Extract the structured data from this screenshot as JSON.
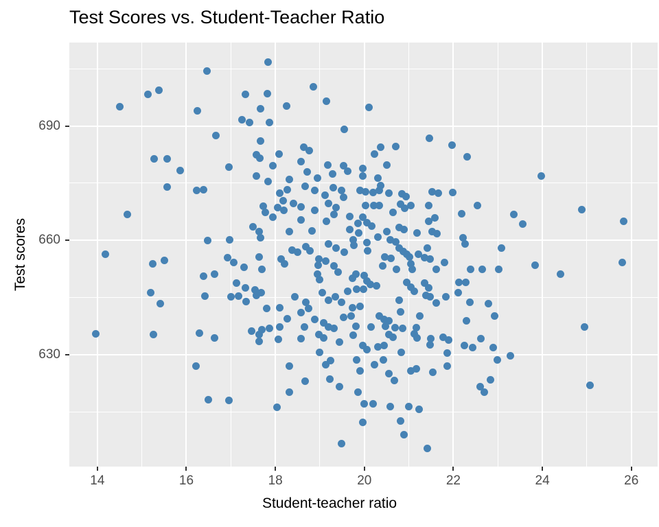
{
  "chart_data": {
    "type": "scatter",
    "title": "Test Scores vs. Student-Teacher Ratio",
    "xlabel": "Student-teacher ratio",
    "ylabel": "Test scores",
    "xlim": [
      13.37,
      26.59
    ],
    "ylim": [
      600.6,
      711.9
    ],
    "x_major_ticks": [
      14,
      16,
      18,
      20,
      22,
      24,
      26
    ],
    "x_minor_ticks": [
      15,
      17,
      19,
      21,
      23,
      25
    ],
    "y_major_ticks": [
      630,
      660,
      690
    ],
    "y_minor_ticks": [
      615,
      645,
      675,
      705
    ],
    "grid": true,
    "legend": "none",
    "point_color": "#4682B4",
    "panel_bg": "#EBEBEB",
    "grid_color": "#FFFFFF",
    "tick_label_color": "#4D4D4D",
    "points": [
      [
        16.46,
        704.4
      ],
      [
        15.13,
        698.3
      ],
      [
        15.38,
        699.3
      ],
      [
        14.51,
        695.1
      ],
      [
        16.25,
        694.0
      ],
      [
        16.66,
        687.5
      ],
      [
        15.27,
        681.3
      ],
      [
        15.57,
        681.3
      ],
      [
        15.86,
        678.3
      ],
      [
        17.84,
        706.8
      ],
      [
        17.33,
        698.3
      ],
      [
        17.82,
        698.4
      ],
      [
        18.85,
        700.2
      ],
      [
        19.14,
        696.5
      ],
      [
        18.26,
        695.3
      ],
      [
        17.67,
        694.5
      ],
      [
        17.25,
        691.6
      ],
      [
        17.42,
        691.0
      ],
      [
        17.86,
        690.9
      ],
      [
        19.55,
        689.2
      ],
      [
        17.67,
        686.1
      ],
      [
        17.58,
        682.5
      ],
      [
        17.65,
        681.6
      ],
      [
        18.09,
        682.7
      ],
      [
        18.64,
        684.5
      ],
      [
        18.76,
        683.5
      ],
      [
        18.57,
        680.7
      ],
      [
        16.95,
        679.3
      ],
      [
        17.95,
        679.5
      ],
      [
        19.18,
        679.8
      ],
      [
        19.53,
        679.5
      ],
      [
        19.63,
        678.1
      ],
      [
        18.71,
        677.9
      ],
      [
        19.29,
        677.5
      ],
      [
        17.58,
        676.8
      ],
      [
        18.32,
        675.9
      ],
      [
        18.95,
        676.3
      ],
      [
        17.84,
        675.5
      ],
      [
        19.97,
        678.9
      ],
      [
        19.97,
        676.9
      ],
      [
        20.1,
        694.8
      ],
      [
        21.46,
        686.7
      ],
      [
        21.97,
        684.9
      ],
      [
        22.31,
        682.0
      ],
      [
        20.37,
        684.4
      ],
      [
        20.71,
        684.7
      ],
      [
        20.22,
        682.6
      ],
      [
        20.51,
        679.8
      ],
      [
        20.31,
        676.3
      ],
      [
        23.97,
        676.8
      ],
      [
        15.57,
        673.9
      ],
      [
        16.23,
        673.0
      ],
      [
        16.38,
        673.2
      ],
      [
        14.68,
        666.7
      ],
      [
        16.48,
        659.9
      ],
      [
        14.18,
        656.3
      ],
      [
        15.25,
        653.9
      ],
      [
        15.51,
        654.8
      ],
      [
        16.39,
        650.5
      ],
      [
        16.64,
        651.2
      ],
      [
        15.2,
        646.3
      ],
      [
        16.41,
        645.4
      ],
      [
        15.41,
        643.4
      ],
      [
        18.1,
        672.4
      ],
      [
        18.27,
        673.3
      ],
      [
        18.67,
        674.2
      ],
      [
        18.89,
        673.1
      ],
      [
        19.3,
        673.8
      ],
      [
        19.48,
        673.1
      ],
      [
        19.9,
        673.0
      ],
      [
        18.05,
        668.6
      ],
      [
        18.19,
        667.9
      ],
      [
        18.4,
        669.7
      ],
      [
        18.18,
        670.4
      ],
      [
        17.73,
        668.9
      ],
      [
        17.78,
        667.3
      ],
      [
        18.58,
        668.8
      ],
      [
        17.95,
        666.1
      ],
      [
        18.89,
        667.9
      ],
      [
        19.19,
        669.7
      ],
      [
        19.37,
        668.6
      ],
      [
        19.53,
        671.3
      ],
      [
        19.12,
        671.9
      ],
      [
        19.67,
        666.3
      ],
      [
        19.85,
        664.5
      ],
      [
        17.49,
        663.5
      ],
      [
        17.63,
        662.2
      ],
      [
        18.58,
        665.3
      ],
      [
        18.82,
        662.5
      ],
      [
        18.31,
        662.2
      ],
      [
        19.14,
        665.0
      ],
      [
        19.32,
        666.7
      ],
      [
        19.67,
        662.9
      ],
      [
        19.87,
        662.0
      ],
      [
        19.75,
        660.2
      ],
      [
        16.97,
        660.2
      ],
      [
        17.66,
        660.6
      ],
      [
        18.37,
        657.5
      ],
      [
        18.5,
        656.8
      ],
      [
        18.69,
        658.3
      ],
      [
        18.77,
        657.2
      ],
      [
        18.98,
        655.1
      ],
      [
        19.19,
        659.0
      ],
      [
        19.37,
        657.9
      ],
      [
        19.55,
        656.9
      ],
      [
        19.76,
        658.7
      ],
      [
        16.92,
        655.4
      ],
      [
        17.06,
        654.2
      ],
      [
        17.63,
        655.6
      ],
      [
        17.3,
        652.9
      ],
      [
        17.7,
        652.3
      ],
      [
        18.13,
        655.1
      ],
      [
        18.2,
        653.8
      ],
      [
        18.96,
        653.5
      ],
      [
        18.94,
        651.2
      ],
      [
        19.0,
        649.7
      ],
      [
        19.13,
        654.6
      ],
      [
        19.32,
        653.3
      ],
      [
        19.41,
        651.7
      ],
      [
        19.73,
        650.0
      ],
      [
        19.81,
        651.1
      ],
      [
        17.13,
        648.7
      ],
      [
        17.33,
        647.6
      ],
      [
        17.55,
        646.9
      ],
      [
        17.68,
        646.3
      ],
      [
        17.0,
        645.1
      ],
      [
        17.18,
        645.4
      ],
      [
        17.34,
        643.9
      ],
      [
        17.57,
        645.6
      ],
      [
        17.8,
        642.1
      ],
      [
        18.1,
        642.3
      ],
      [
        18.44,
        645.2
      ],
      [
        18.68,
        643.7
      ],
      [
        18.75,
        642.1
      ],
      [
        18.58,
        641.1
      ],
      [
        18.27,
        639.4
      ],
      [
        19.05,
        646.3
      ],
      [
        19.19,
        644.2
      ],
      [
        19.35,
        645.2
      ],
      [
        19.49,
        643.7
      ],
      [
        19.63,
        646.7
      ],
      [
        19.82,
        647.2
      ],
      [
        19.73,
        642.3
      ],
      [
        19.91,
        642.7
      ],
      [
        19.53,
        639.8
      ],
      [
        19.71,
        640.2
      ],
      [
        18.88,
        639.2
      ],
      [
        19.08,
        638.4
      ],
      [
        20.03,
        672.8
      ],
      [
        20.2,
        672.5
      ],
      [
        20.34,
        673.1
      ],
      [
        20.36,
        674.4
      ],
      [
        20.55,
        672.4
      ],
      [
        20.84,
        672.2
      ],
      [
        20.93,
        671.4
      ],
      [
        21.52,
        672.8
      ],
      [
        21.66,
        672.4
      ],
      [
        21.99,
        672.5
      ],
      [
        20.21,
        669.2
      ],
      [
        20.34,
        669.1
      ],
      [
        20.03,
        669.1
      ],
      [
        20.64,
        667.4
      ],
      [
        20.82,
        669.5
      ],
      [
        20.91,
        668.4
      ],
      [
        21.05,
        669.2
      ],
      [
        21.45,
        669.1
      ],
      [
        22.54,
        669.2
      ],
      [
        22.18,
        667.0
      ],
      [
        19.97,
        666.1
      ],
      [
        20.05,
        664.7
      ],
      [
        20.17,
        663.8
      ],
      [
        20.78,
        663.4
      ],
      [
        20.89,
        662.9
      ],
      [
        21.19,
        662.0
      ],
      [
        21.52,
        662.2
      ],
      [
        21.63,
        661.8
      ],
      [
        21.44,
        664.9
      ],
      [
        21.58,
        665.8
      ],
      [
        22.21,
        660.6
      ],
      [
        22.27,
        659.1
      ],
      [
        20.05,
        659.4
      ],
      [
        20.31,
        660.9
      ],
      [
        20.5,
        662.2
      ],
      [
        20.58,
        660.1
      ],
      [
        20.7,
        659.5
      ],
      [
        20.07,
        657.2
      ],
      [
        20.46,
        655.6
      ],
      [
        20.6,
        655.2
      ],
      [
        20.78,
        658.0
      ],
      [
        20.87,
        657.1
      ],
      [
        20.95,
        656.3
      ],
      [
        21.02,
        655.7
      ],
      [
        21.22,
        656.3
      ],
      [
        21.35,
        655.4
      ],
      [
        21.48,
        655.1
      ],
      [
        21.42,
        658.0
      ],
      [
        21.8,
        654.2
      ],
      [
        21.61,
        652.3
      ],
      [
        21.05,
        653.8
      ],
      [
        21.08,
        652.3
      ],
      [
        20.72,
        652.3
      ],
      [
        20.41,
        653.2
      ],
      [
        22.38,
        652.3
      ],
      [
        22.65,
        652.3
      ],
      [
        23.02,
        652.3
      ],
      [
        23.08,
        658.0
      ],
      [
        20.0,
        650.7
      ],
      [
        20.05,
        649.3
      ],
      [
        20.14,
        648.4
      ],
      [
        20.27,
        648.1
      ],
      [
        19.98,
        647.1
      ],
      [
        20.95,
        648.9
      ],
      [
        21.05,
        647.7
      ],
      [
        21.12,
        646.7
      ],
      [
        21.35,
        648.7
      ],
      [
        21.45,
        647.5
      ],
      [
        22.13,
        649.0
      ],
      [
        22.28,
        648.9
      ],
      [
        22.11,
        646.3
      ],
      [
        21.38,
        645.6
      ],
      [
        21.48,
        645.2
      ],
      [
        21.83,
        645.2
      ],
      [
        21.61,
        643.6
      ],
      [
        20.78,
        644.2
      ],
      [
        22.37,
        643.8
      ],
      [
        22.79,
        643.4
      ],
      [
        20.81,
        641.2
      ],
      [
        21.25,
        640.2
      ],
      [
        22.93,
        640.2
      ],
      [
        20.33,
        640.2
      ],
      [
        20.44,
        639.2
      ],
      [
        20.55,
        638.8
      ],
      [
        22.29,
        638.8
      ],
      [
        23.36,
        666.7
      ],
      [
        23.56,
        664.3
      ],
      [
        24.89,
        668.0
      ],
      [
        25.82,
        664.9
      ],
      [
        23.83,
        653.5
      ],
      [
        24.4,
        651.1
      ],
      [
        25.79,
        654.2
      ],
      [
        13.97,
        635.4
      ],
      [
        15.26,
        635.3
      ],
      [
        16.29,
        635.7
      ],
      [
        16.63,
        634.4
      ],
      [
        16.21,
        627.0
      ],
      [
        16.49,
        618.2
      ],
      [
        17.47,
        636.2
      ],
      [
        17.63,
        635.3
      ],
      [
        17.7,
        636.6
      ],
      [
        17.86,
        636.8
      ],
      [
        17.64,
        633.4
      ],
      [
        18.1,
        637.2
      ],
      [
        18.07,
        634.0
      ],
      [
        18.57,
        634.1
      ],
      [
        18.66,
        637.3
      ],
      [
        18.98,
        635.3
      ],
      [
        19.09,
        634.4
      ],
      [
        19.0,
        630.6
      ],
      [
        19.19,
        637.2
      ],
      [
        19.31,
        636.8
      ],
      [
        19.44,
        633.2
      ],
      [
        19.75,
        635.0
      ],
      [
        19.81,
        637.4
      ],
      [
        19.96,
        632.3
      ],
      [
        19.13,
        627.4
      ],
      [
        19.24,
        628.4
      ],
      [
        18.31,
        626.9
      ],
      [
        18.67,
        623.0
      ],
      [
        18.32,
        620.2
      ],
      [
        19.23,
        623.6
      ],
      [
        19.44,
        621.6
      ],
      [
        19.82,
        628.6
      ],
      [
        19.9,
        625.7
      ],
      [
        19.85,
        620.2
      ],
      [
        16.96,
        617.9
      ],
      [
        18.04,
        616.2
      ],
      [
        19.96,
        612.3
      ],
      [
        19.49,
        606.6
      ],
      [
        20.15,
        637.2
      ],
      [
        20.48,
        637.4
      ],
      [
        20.69,
        637.0
      ],
      [
        20.86,
        636.8
      ],
      [
        20.55,
        635.3
      ],
      [
        20.64,
        634.5
      ],
      [
        20.05,
        631.3
      ],
      [
        20.31,
        632.0
      ],
      [
        20.45,
        632.4
      ],
      [
        20.83,
        630.6
      ],
      [
        21.17,
        637.0
      ],
      [
        21.12,
        635.4
      ],
      [
        21.19,
        634.4
      ],
      [
        21.49,
        634.1
      ],
      [
        21.48,
        632.6
      ],
      [
        21.77,
        634.6
      ],
      [
        21.89,
        633.8
      ],
      [
        21.86,
        630.4
      ],
      [
        22.25,
        632.3
      ],
      [
        22.44,
        631.8
      ],
      [
        22.62,
        634.2
      ],
      [
        22.9,
        631.9
      ],
      [
        21.86,
        626.9
      ],
      [
        21.54,
        625.4
      ],
      [
        21.05,
        625.7
      ],
      [
        21.17,
        626.2
      ],
      [
        20.23,
        627.4
      ],
      [
        20.42,
        628.6
      ],
      [
        20.55,
        625.0
      ],
      [
        20.67,
        623.2
      ],
      [
        22.99,
        628.6
      ],
      [
        23.28,
        629.6
      ],
      [
        22.84,
        623.3
      ],
      [
        22.6,
        621.6
      ],
      [
        22.7,
        620.2
      ],
      [
        19.99,
        617.0
      ],
      [
        20.2,
        617.0
      ],
      [
        20.58,
        616.4
      ],
      [
        21.0,
        616.4
      ],
      [
        21.23,
        615.6
      ],
      [
        20.81,
        612.6
      ],
      [
        20.89,
        608.9
      ],
      [
        21.41,
        605.4
      ],
      [
        24.95,
        637.3
      ],
      [
        25.07,
        622.0
      ]
    ]
  }
}
